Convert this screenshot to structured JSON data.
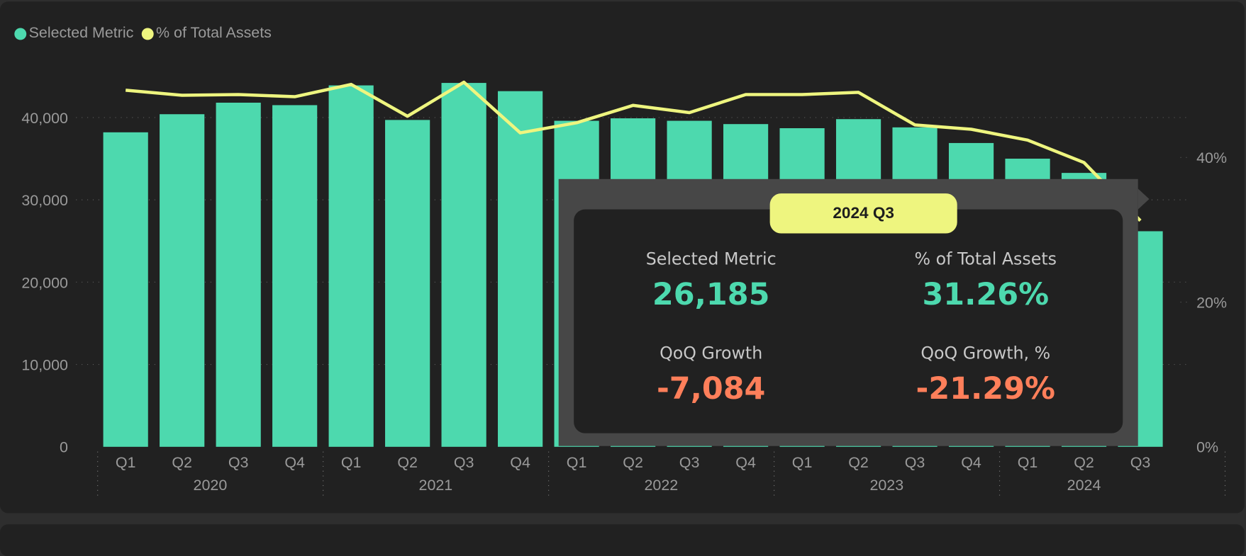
{
  "legend": [
    {
      "label": "Selected Metric",
      "color": "#4dd9ae"
    },
    {
      "label": "% of Total Assets",
      "color": "#eef57f"
    }
  ],
  "chart_data": {
    "type": "bar+line",
    "categories": [
      "2020 Q1",
      "2020 Q2",
      "2020 Q3",
      "2020 Q4",
      "2021 Q1",
      "2021 Q2",
      "2021 Q3",
      "2021 Q4",
      "2022 Q1",
      "2022 Q2",
      "2022 Q3",
      "2022 Q4",
      "2023 Q1",
      "2023 Q2",
      "2023 Q3",
      "2023 Q4",
      "2024 Q1",
      "2024 Q2",
      "2024 Q3"
    ],
    "quarter_labels": [
      "Q1",
      "Q2",
      "Q3",
      "Q4",
      "Q1",
      "Q2",
      "Q3",
      "Q4",
      "Q1",
      "Q2",
      "Q3",
      "Q4",
      "Q1",
      "Q2",
      "Q3",
      "Q4",
      "Q1",
      "Q2",
      "Q3"
    ],
    "year_labels": [
      "2020",
      "2021",
      "2022",
      "2023",
      "2024"
    ],
    "series": [
      {
        "name": "Selected Metric",
        "type": "bar",
        "axis": "left",
        "color": "#4dd9ae",
        "values": [
          38200,
          40400,
          41800,
          41500,
          43900,
          39700,
          44200,
          43200,
          39600,
          39900,
          39600,
          39200,
          38700,
          39800,
          38800,
          36900,
          35000,
          33269,
          26185
        ]
      },
      {
        "name": "% of Total Assets",
        "type": "line",
        "axis": "right",
        "color": "#eef57f",
        "values": [
          49.3,
          48.6,
          48.7,
          48.4,
          50.1,
          45.7,
          50.4,
          43.4,
          44.8,
          47.2,
          46.2,
          48.7,
          48.7,
          49.0,
          44.5,
          43.9,
          42.4,
          39.3,
          31.26
        ]
      }
    ],
    "y_left": {
      "ticks": [
        0,
        10000,
        20000,
        30000,
        40000
      ],
      "tick_labels": [
        "0",
        "10,000",
        "20,000",
        "30,000",
        "40,000"
      ],
      "range": [
        0,
        40000
      ]
    },
    "y_right": {
      "ticks": [
        0,
        20,
        40
      ],
      "tick_labels": [
        "0%",
        "20%",
        "40%"
      ],
      "range": [
        0,
        40
      ]
    },
    "grid": true,
    "legend_position": "top-left"
  },
  "tooltip": {
    "title": "2024 Q3",
    "selected_metric_label": "Selected Metric",
    "selected_metric_value": "26,185",
    "pct_label": "% of Total Assets",
    "pct_value": "31.26%",
    "qoq_label": "QoQ Growth",
    "qoq_value": "-7,084",
    "qoq_pct_label": "QoQ Growth, %",
    "qoq_pct_value": "-21.29%"
  }
}
